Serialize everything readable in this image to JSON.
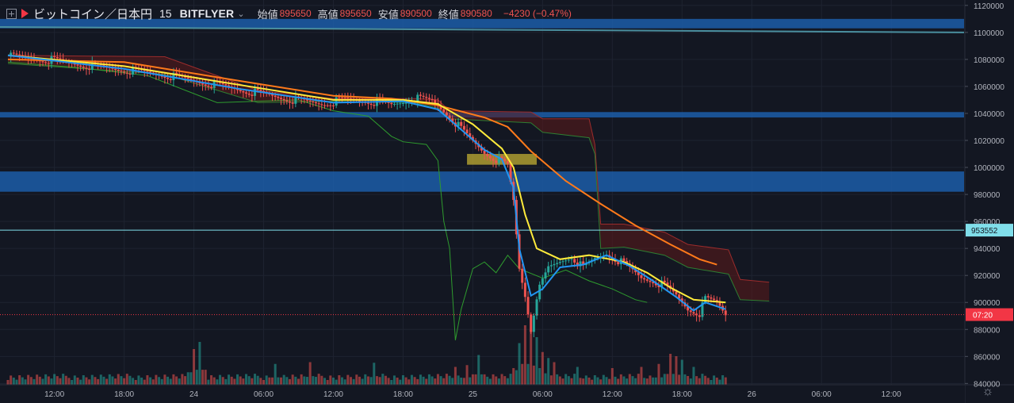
{
  "legend": {
    "symbol": "ビットコイン／日本円",
    "resolution": "15",
    "exchange": "BITFLYER",
    "open_label": "始値",
    "open": "895650",
    "high_label": "高値",
    "high": "895650",
    "low_label": "安値",
    "low": "890500",
    "close_label": "終値",
    "close": "890580",
    "change": "−4230 (−0.47%)"
  },
  "colors": {
    "background": "#131722",
    "grid": "#1e2330",
    "up": "#26a69a",
    "down": "#ef5350",
    "ma_fast": "#2196f3",
    "ma_mid": "#ffeb3b",
    "ma_slow": "#ff7a1a",
    "zone": "#1c5da8",
    "level_line": "#80deea",
    "last_price": "#f23645",
    "cloud_bear": "#5d1a1a",
    "cloud_bull": "#1e4d1e"
  },
  "chart_data": {
    "type": "candlestick",
    "y_axis": {
      "ticks": [
        1120000,
        1100000,
        1080000,
        1060000,
        1040000,
        1020000,
        1000000,
        980000,
        960000,
        940000,
        920000,
        900000,
        880000,
        860000,
        840000
      ],
      "ylim": [
        822000,
        1124000
      ]
    },
    "x_axis": {
      "ticks": [
        "12:00",
        "18:00",
        "24",
        "06:00",
        "12:00",
        "18:00",
        "25",
        "06:00",
        "12:00",
        "18:00",
        "26",
        "06:00",
        "12:00"
      ]
    },
    "price_path": [
      [
        0,
        1082000
      ],
      [
        8,
        1079000
      ],
      [
        14,
        1075000
      ],
      [
        20,
        1072000
      ],
      [
        26,
        1069000
      ],
      [
        32,
        1064000
      ],
      [
        38,
        1059000
      ],
      [
        44,
        1054000
      ],
      [
        50,
        1049000
      ],
      [
        54,
        1047000
      ],
      [
        58,
        1050000
      ],
      [
        62,
        1049000
      ],
      [
        66,
        1046000
      ],
      [
        70,
        1051000
      ],
      [
        73,
        1049000
      ],
      [
        76,
        1038000
      ],
      [
        78,
        1028000
      ],
      [
        80,
        1019000
      ],
      [
        82,
        1011000
      ],
      [
        84,
        1006000
      ],
      [
        86,
        1001000
      ],
      [
        87,
        975000
      ],
      [
        88,
        925000
      ],
      [
        89,
        905000
      ],
      [
        90,
        880000
      ],
      [
        91,
        905000
      ],
      [
        93,
        925000
      ],
      [
        95,
        930000
      ],
      [
        97,
        934000
      ],
      [
        99,
        925000
      ],
      [
        101,
        932000
      ],
      [
        103,
        936000
      ],
      [
        105,
        931000
      ],
      [
        107,
        925000
      ],
      [
        109,
        918000
      ],
      [
        111,
        916000
      ],
      [
        113,
        912000
      ],
      [
        115,
        905000
      ],
      [
        117,
        895000
      ],
      [
        119,
        892000
      ],
      [
        120,
        902000
      ],
      [
        122,
        900000
      ],
      [
        123.5,
        891000
      ]
    ],
    "ma_fast": [
      [
        0,
        1083000
      ],
      [
        20,
        1073000
      ],
      [
        40,
        1058000
      ],
      [
        56,
        1048000
      ],
      [
        68,
        1049000
      ],
      [
        74,
        1043000
      ],
      [
        78,
        1028000
      ],
      [
        82,
        1013000
      ],
      [
        85,
        1006000
      ],
      [
        87,
        985000
      ],
      [
        88,
        940000
      ],
      [
        90,
        905000
      ],
      [
        92,
        910000
      ],
      [
        95,
        926000
      ],
      [
        99,
        928000
      ],
      [
        103,
        935000
      ],
      [
        107,
        927000
      ],
      [
        111,
        916000
      ],
      [
        115,
        904000
      ],
      [
        118,
        894000
      ],
      [
        120,
        900000
      ],
      [
        123.5,
        895000
      ]
    ],
    "ma_mid": [
      [
        0,
        1083000
      ],
      [
        20,
        1075000
      ],
      [
        40,
        1061000
      ],
      [
        56,
        1050000
      ],
      [
        68,
        1050000
      ],
      [
        74,
        1047000
      ],
      [
        80,
        1032000
      ],
      [
        85,
        1014000
      ],
      [
        87,
        1000000
      ],
      [
        89,
        965000
      ],
      [
        91,
        940000
      ],
      [
        95,
        932000
      ],
      [
        100,
        935000
      ],
      [
        106,
        930000
      ],
      [
        110,
        922000
      ],
      [
        114,
        911000
      ],
      [
        118,
        902000
      ],
      [
        123.5,
        900000
      ]
    ],
    "ma_slow": [
      [
        0,
        1080000
      ],
      [
        20,
        1078000
      ],
      [
        40,
        1064000
      ],
      [
        56,
        1053000
      ],
      [
        66,
        1051000
      ],
      [
        74,
        1046000
      ],
      [
        82,
        1037000
      ],
      [
        86,
        1030000
      ],
      [
        90,
        1012000
      ],
      [
        96,
        990000
      ],
      [
        102,
        973000
      ],
      [
        108,
        957000
      ],
      [
        114,
        943000
      ],
      [
        119,
        932000
      ],
      [
        122,
        928000
      ]
    ],
    "cloud_top": [
      [
        0,
        1083000
      ],
      [
        27,
        1082000
      ],
      [
        43,
        1057000
      ],
      [
        56,
        1051000
      ],
      [
        70,
        1051000
      ],
      [
        74,
        1050000
      ],
      [
        76,
        1042000
      ],
      [
        90,
        1041000
      ],
      [
        92,
        1036000
      ],
      [
        100,
        1036000
      ],
      [
        101,
        1017000
      ],
      [
        102,
        958000
      ],
      [
        106,
        958000
      ],
      [
        113,
        952000
      ],
      [
        117,
        943000
      ],
      [
        124,
        939000
      ],
      [
        126,
        917000
      ],
      [
        131,
        915000
      ]
    ],
    "cloud_bottom": [
      [
        0,
        1077000
      ],
      [
        27,
        1069000
      ],
      [
        43,
        1048000
      ],
      [
        56,
        1049000
      ],
      [
        70,
        1048000
      ],
      [
        74,
        1044000
      ],
      [
        76,
        1036000
      ],
      [
        90,
        1033000
      ],
      [
        92,
        1026000
      ],
      [
        100,
        1022000
      ],
      [
        101,
        1010000
      ],
      [
        102,
        940000
      ],
      [
        106,
        941000
      ],
      [
        113,
        935000
      ],
      [
        117,
        926000
      ],
      [
        124,
        921000
      ],
      [
        126,
        902000
      ],
      [
        131,
        901000
      ]
    ],
    "lagging_span": [
      [
        0,
        1078000
      ],
      [
        12,
        1074000
      ],
      [
        24,
        1068000
      ],
      [
        36,
        1048000
      ],
      [
        50,
        1050000
      ],
      [
        56,
        1042000
      ],
      [
        62,
        1038000
      ],
      [
        66,
        1023000
      ],
      [
        68,
        1019000
      ],
      [
        72,
        1017000
      ],
      [
        74,
        1005000
      ],
      [
        75,
        960000
      ],
      [
        76,
        940000
      ],
      [
        77,
        872000
      ],
      [
        78,
        895000
      ],
      [
        80,
        925000
      ],
      [
        82,
        930000
      ],
      [
        84,
        922000
      ],
      [
        86,
        935000
      ],
      [
        88,
        925000
      ],
      [
        92,
        918000
      ],
      [
        96,
        924000
      ],
      [
        100,
        916000
      ],
      [
        104,
        910000
      ],
      [
        108,
        902000
      ],
      [
        110,
        900000
      ]
    ],
    "volume": {
      "scale_max": 100,
      "spikes": [
        [
          32,
          60
        ],
        [
          33,
          72
        ],
        [
          46,
          35
        ],
        [
          52,
          38
        ],
        [
          63,
          37
        ],
        [
          77,
          30
        ],
        [
          79,
          33
        ],
        [
          81,
          50
        ],
        [
          87,
          28
        ],
        [
          88,
          70
        ],
        [
          89,
          100
        ],
        [
          90,
          92
        ],
        [
          91,
          80
        ],
        [
          92,
          55
        ],
        [
          93,
          45
        ],
        [
          94,
          38
        ],
        [
          98,
          30
        ],
        [
          104,
          28
        ],
        [
          109,
          30
        ],
        [
          112,
          35
        ],
        [
          114,
          52
        ],
        [
          115,
          48
        ],
        [
          116,
          42
        ],
        [
          118,
          30
        ]
      ],
      "baseline": 8,
      "last_index": 123.5
    },
    "zones": [
      {
        "from": 1110000,
        "to": 1103000
      },
      {
        "from": 1041000,
        "to": 1037000
      },
      {
        "from": 997000,
        "to": 982000
      }
    ],
    "small_box": {
      "x_from": 79,
      "x_to": 91,
      "from": 1010000,
      "to": 1002000
    },
    "level_line": 953552,
    "last_price_line": 891000,
    "labels": {
      "level": "953552",
      "countdown": "07:20"
    }
  }
}
